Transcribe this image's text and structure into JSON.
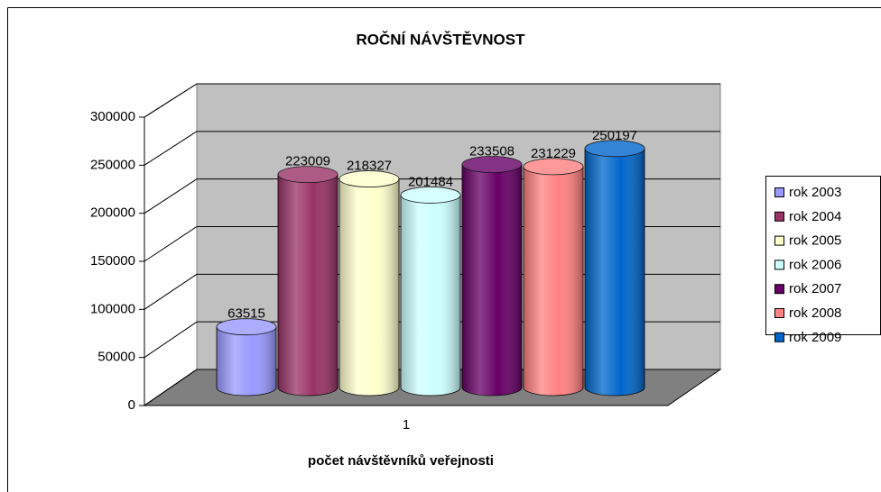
{
  "chart_data": {
    "type": "bar3d",
    "title": "ROČNÍ NÁVŠTĚVNOST",
    "x_label": "počet návštěvníků veřejnosti",
    "categories": [
      "1"
    ],
    "series": [
      {
        "name": "rok 2003",
        "color": "#9999ff",
        "values": [
          63515
        ]
      },
      {
        "name": "rok 2004",
        "color": "#993366",
        "values": [
          223009
        ]
      },
      {
        "name": "rok 2005",
        "color": "#ffffcc",
        "values": [
          218327
        ]
      },
      {
        "name": "rok 2006",
        "color": "#ccffff",
        "values": [
          201484
        ]
      },
      {
        "name": "rok 2007",
        "color": "#660066",
        "values": [
          233508
        ]
      },
      {
        "name": "rok 2008",
        "color": "#ff8080",
        "values": [
          231229
        ]
      },
      {
        "name": "rok 2009",
        "color": "#0066cc",
        "values": [
          250197
        ]
      }
    ],
    "ylim": [
      0,
      300000
    ],
    "yticks": [
      0,
      50000,
      100000,
      150000,
      200000,
      250000,
      300000
    ],
    "grid": true,
    "legend": "right"
  }
}
